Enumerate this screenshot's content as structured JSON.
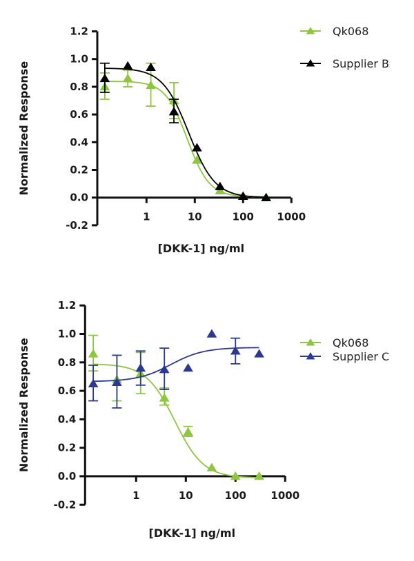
{
  "chart_data": [
    {
      "type": "scatter",
      "title": "",
      "xlabel": "[DKK-1] ng/ml",
      "ylabel": "Normalized Response",
      "xscale": "log",
      "xlim": [
        0.1,
        1000
      ],
      "ylim": [
        -0.2,
        1.2
      ],
      "x_ticks": [
        "1",
        "10",
        "100",
        "1000"
      ],
      "y_ticks": [
        "-0.2",
        "0.0",
        "0.2",
        "0.4",
        "0.6",
        "0.8",
        "1.0",
        "1.2"
      ],
      "legend_position": "top-right",
      "x": [
        0.137,
        0.41,
        1.23,
        3.7,
        11.1,
        33.3,
        100,
        300
      ],
      "series": [
        {
          "name": "Qk068",
          "color": "#8DC63F",
          "values": [
            0.8,
            0.86,
            0.81,
            0.7,
            0.27,
            0.05,
            0.01,
            0.0
          ],
          "err_low": [
            0.71,
            0.8,
            0.66,
            0.57,
            null,
            null,
            null,
            null
          ],
          "err_high": [
            0.9,
            0.92,
            0.97,
            0.83,
            null,
            null,
            null,
            null
          ],
          "fit": {
            "top": 0.84,
            "bottom": 0.005,
            "ec50": 7.0,
            "hill": -1.9
          }
        },
        {
          "name": "Supplier B",
          "color": "#000000",
          "values": [
            0.86,
            0.95,
            0.94,
            0.62,
            0.36,
            0.08,
            0.01,
            0.0
          ],
          "err_low": [
            0.76,
            null,
            null,
            0.54,
            null,
            null,
            null,
            null
          ],
          "err_high": [
            0.97,
            null,
            null,
            0.71,
            null,
            null,
            null,
            null
          ],
          "fit": {
            "top": 0.935,
            "bottom": 0.0,
            "ec50": 7.5,
            "hill": -1.6
          }
        }
      ]
    },
    {
      "type": "scatter",
      "title": "",
      "xlabel": "[DKK-1] ng/ml",
      "ylabel": "Normalized Response",
      "xscale": "log",
      "xlim": [
        0.1,
        1000
      ],
      "ylim": [
        -0.2,
        1.2
      ],
      "x_ticks": [
        "1",
        "10",
        "100",
        "1000"
      ],
      "y_ticks": [
        "-0.2",
        "0.0",
        "0.2",
        "0.4",
        "0.6",
        "0.8",
        "1.0",
        "1.2"
      ],
      "legend_position": "top-right",
      "x": [
        0.137,
        0.41,
        1.23,
        3.7,
        11.1,
        33.3,
        100,
        300
      ],
      "series": [
        {
          "name": "Qk068",
          "color": "#8DC63F",
          "values": [
            0.86,
            0.68,
            0.72,
            0.55,
            0.31,
            0.06,
            0.0,
            0.0
          ],
          "err_low": [
            0.74,
            0.53,
            0.58,
            0.5,
            0.28,
            null,
            null,
            null
          ],
          "err_high": [
            0.99,
            0.85,
            0.87,
            0.62,
            0.35,
            null,
            null,
            null
          ],
          "fit": {
            "top": 0.79,
            "bottom": -0.012,
            "ec50": 6.0,
            "hill": -1.5
          }
        },
        {
          "name": "Supplier C",
          "color": "#2B3990",
          "values": [
            0.65,
            0.66,
            0.76,
            0.75,
            0.76,
            1.0,
            0.88,
            0.86
          ],
          "err_low": [
            0.53,
            0.48,
            0.64,
            0.61,
            null,
            null,
            0.79,
            null
          ],
          "err_high": [
            0.78,
            0.85,
            0.88,
            0.9,
            null,
            null,
            0.97,
            null
          ],
          "fit": {
            "top": 0.905,
            "bottom": 0.665,
            "ec50": 5.0,
            "hill": 1.3
          }
        }
      ]
    }
  ]
}
